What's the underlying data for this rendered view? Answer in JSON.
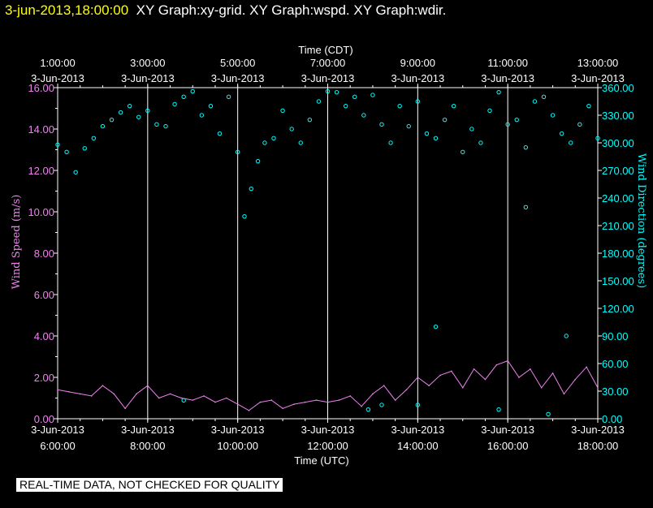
{
  "header": {
    "timestamp": "3-jun-2013,18:00:00",
    "graph_labels": "XY Graph:xy-grid.  XY Graph:wspd.  XY Graph:wdir."
  },
  "footer": {
    "disclaimer": "REAL-TIME DATA, NOT CHECKED FOR QUALITY"
  },
  "colors": {
    "speed": "#ee82ee",
    "direction": "#00ffff",
    "grid": "#ffffff",
    "axis_text": "#ffffff",
    "timestamp": "#ffff00"
  },
  "chart_data": {
    "type": "line",
    "title": "",
    "top_axis": {
      "label": "Time (CDT)",
      "ticks": [
        {
          "time": "1:00:00",
          "date": "3-Jun-2013"
        },
        {
          "time": "3:00:00",
          "date": "3-Jun-2013"
        },
        {
          "time": "5:00:00",
          "date": "3-Jun-2013"
        },
        {
          "time": "7:00:00",
          "date": "3-Jun-2013"
        },
        {
          "time": "9:00:00",
          "date": "3-Jun-2013"
        },
        {
          "time": "11:00:00",
          "date": "3-Jun-2013"
        },
        {
          "time": "13:00:00",
          "date": "3-Jun-2013"
        }
      ]
    },
    "bottom_axis": {
      "label": "Time (UTC)",
      "ticks": [
        {
          "date": "3-Jun-2013",
          "time": "6:00:00"
        },
        {
          "date": "3-Jun-2013",
          "time": "8:00:00"
        },
        {
          "date": "3-Jun-2013",
          "time": "10:00:00"
        },
        {
          "date": "3-Jun-2013",
          "time": "12:00:00"
        },
        {
          "date": "3-Jun-2013",
          "time": "14:00:00"
        },
        {
          "date": "3-Jun-2013",
          "time": "16:00:00"
        },
        {
          "date": "3-Jun-2013",
          "time": "18:00:00"
        }
      ],
      "xlim_hours_utc": [
        6,
        18
      ]
    },
    "left_axis": {
      "label": "Wind Speed (m/s)",
      "ylim": [
        0,
        16
      ],
      "ticks": [
        "0.00",
        "2.00",
        "4.00",
        "6.00",
        "8.00",
        "10.00",
        "12.00",
        "14.00",
        "16.00"
      ]
    },
    "right_axis": {
      "label": "Wind Direction (degrees)",
      "ylim": [
        0,
        360
      ],
      "ticks": [
        "0.00",
        "30.00",
        "60.00",
        "90.00",
        "120.00",
        "150.00",
        "180.00",
        "210.00",
        "240.00",
        "270.00",
        "300.00",
        "330.00",
        "360.00"
      ]
    },
    "grid": true,
    "series": [
      {
        "name": "wspd",
        "style": "line",
        "x_hours_utc": [
          6.0,
          6.25,
          6.5,
          6.75,
          7.0,
          7.25,
          7.5,
          7.75,
          8.0,
          8.25,
          8.5,
          8.75,
          9.0,
          9.25,
          9.5,
          9.75,
          10.0,
          10.25,
          10.5,
          10.75,
          11.0,
          11.25,
          11.5,
          11.75,
          12.0,
          12.25,
          12.5,
          12.75,
          13.0,
          13.25,
          13.5,
          13.75,
          14.0,
          14.25,
          14.5,
          14.75,
          15.0,
          15.25,
          15.5,
          15.75,
          16.0,
          16.25,
          16.5,
          16.75,
          17.0,
          17.25,
          17.5,
          17.75,
          18.0
        ],
        "values": [
          1.4,
          1.3,
          1.2,
          1.1,
          1.6,
          1.2,
          0.5,
          1.2,
          1.6,
          1.0,
          1.2,
          1.0,
          0.9,
          1.1,
          0.8,
          1.0,
          0.7,
          0.4,
          0.8,
          0.9,
          0.5,
          0.7,
          0.8,
          0.9,
          0.8,
          0.9,
          1.1,
          0.6,
          1.2,
          1.6,
          0.9,
          1.4,
          2.0,
          1.6,
          2.1,
          2.3,
          1.5,
          2.4,
          1.9,
          2.6,
          2.8,
          2.0,
          2.4,
          1.5,
          2.2,
          1.2,
          1.9,
          2.5,
          1.5
        ]
      },
      {
        "name": "wdir",
        "style": "scatter",
        "x_hours_utc": [
          6.0,
          6.2,
          6.4,
          6.6,
          6.8,
          7.0,
          7.2,
          7.4,
          7.6,
          7.8,
          8.0,
          8.2,
          8.4,
          8.6,
          8.8,
          9.0,
          9.2,
          9.4,
          9.6,
          9.8,
          10.0,
          10.15,
          10.3,
          10.45,
          10.6,
          10.8,
          11.0,
          11.2,
          11.4,
          11.6,
          11.8,
          12.0,
          12.2,
          12.4,
          12.6,
          12.8,
          13.0,
          13.2,
          13.4,
          13.6,
          13.8,
          14.0,
          14.2,
          14.4,
          14.6,
          14.8,
          15.0,
          15.2,
          15.4,
          15.6,
          15.8,
          16.0,
          16.2,
          16.4,
          16.6,
          16.8,
          17.0,
          17.2,
          17.4,
          17.6,
          17.8,
          18.0,
          14.4,
          15.8,
          16.4,
          17.3,
          13.2,
          8.8,
          12.9,
          14.0,
          16.9
        ],
        "values": [
          298,
          290,
          268,
          294,
          305,
          318,
          325,
          333,
          340,
          328,
          335,
          320,
          318,
          342,
          350,
          356,
          330,
          340,
          310,
          350,
          290,
          220,
          250,
          280,
          300,
          305,
          335,
          315,
          300,
          325,
          345,
          356,
          355,
          340,
          350,
          330,
          352,
          320,
          300,
          340,
          318,
          345,
          310,
          305,
          325,
          340,
          290,
          315,
          300,
          335,
          355,
          320,
          325,
          295,
          345,
          350,
          330,
          310,
          300,
          320,
          340,
          305,
          100,
          10,
          230,
          90,
          15,
          20,
          10,
          15,
          5
        ]
      }
    ]
  }
}
